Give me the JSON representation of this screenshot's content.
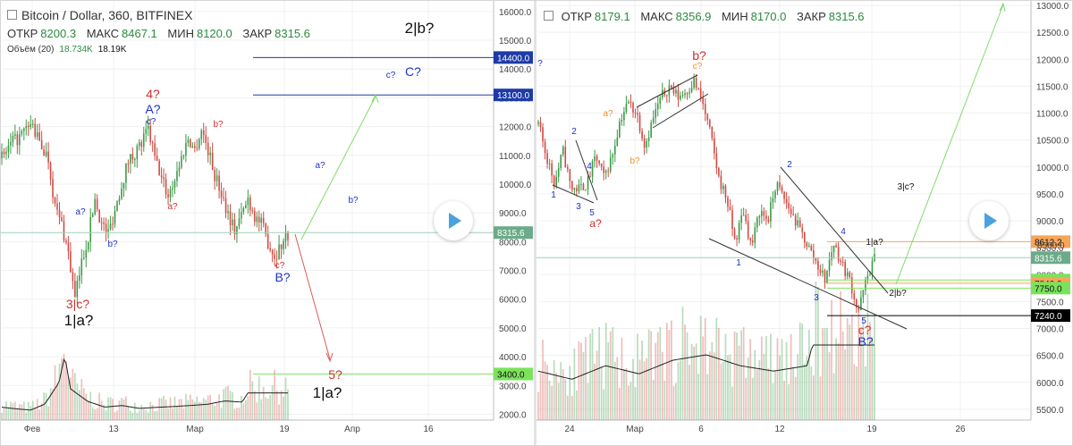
{
  "left_panel": {
    "title": "Bitcoin / Dollar, 360, BITFINEX",
    "ohlc": [
      {
        "label": "ОТКР",
        "value": "8200.3"
      },
      {
        "label": "МАКС",
        "value": "8467.1"
      },
      {
        "label": "МИН",
        "value": "8120.0"
      },
      {
        "label": "ЗАКР",
        "value": "8315.6"
      }
    ],
    "volume_label": "Объём (20)",
    "volume_values": [
      "18.734K",
      "18.19K"
    ]
  },
  "right_panel": {
    "ohlc": [
      {
        "label": "ОТКР",
        "value": "8179.1"
      },
      {
        "label": "МАКС",
        "value": "8356.9"
      },
      {
        "label": "МИН",
        "value": "8170.0"
      },
      {
        "label": "ЗАКР",
        "value": "8315.6"
      }
    ]
  },
  "colors": {
    "up": "#3c9a48",
    "down": "#d24a43",
    "wave_red": "#d32f2f",
    "wave_blue": "#1a33c9",
    "wave_orange": "#f0932b",
    "green_label": "#7be35b",
    "price_tag": "#6bab8a",
    "orange_tag": "#f6a55a",
    "black_tag": "#000000",
    "blue_line": "#1e3aa6"
  },
  "chart_data": [
    {
      "type": "candlestick",
      "title": "Bitcoin / Dollar, 360, BITFINEX",
      "x_ticks": [
        "Фев",
        "13",
        "Мар",
        "19",
        "Апр",
        "16"
      ],
      "y_ticks": [
        2000,
        3000,
        4000,
        5000,
        6000,
        7000,
        8000,
        9000,
        10000,
        11000,
        12000,
        13000,
        14000,
        15000,
        16000
      ],
      "y_tick_labels": [
        "2000.0",
        "3000.0",
        "4000.0",
        "5000.0",
        "6000.0",
        "7000.0",
        "8000.0",
        "9000.0",
        "10000.0",
        "11000.0",
        "12000.0",
        "13000.0",
        "14000.0",
        "15000.0",
        "16000.0"
      ],
      "ylim": [
        1300,
        16400
      ],
      "price_path": [
        [
          0.0,
          10900
        ],
        [
          0.03,
          11400
        ],
        [
          0.06,
          11700
        ],
        [
          0.09,
          12100
        ],
        [
          0.11,
          11500
        ],
        [
          0.14,
          10900
        ],
        [
          0.16,
          9200
        ],
        [
          0.18,
          8600
        ],
        [
          0.2,
          7600
        ],
        [
          0.22,
          6000
        ],
        [
          0.24,
          7300
        ],
        [
          0.26,
          8200
        ],
        [
          0.28,
          9500
        ],
        [
          0.3,
          8600
        ],
        [
          0.32,
          8300
        ],
        [
          0.34,
          9100
        ],
        [
          0.36,
          10000
        ],
        [
          0.38,
          10800
        ],
        [
          0.4,
          11100
        ],
        [
          0.42,
          11400
        ],
        [
          0.44,
          11900
        ],
        [
          0.46,
          10900
        ],
        [
          0.48,
          10200
        ],
        [
          0.5,
          9600
        ],
        [
          0.52,
          10200
        ],
        [
          0.54,
          10900
        ],
        [
          0.56,
          11600
        ],
        [
          0.58,
          11200
        ],
        [
          0.6,
          11900
        ],
        [
          0.62,
          11200
        ],
        [
          0.64,
          10300
        ],
        [
          0.66,
          9700
        ],
        [
          0.68,
          9000
        ],
        [
          0.7,
          8400
        ],
        [
          0.72,
          8900
        ],
        [
          0.74,
          9500
        ],
        [
          0.76,
          8900
        ],
        [
          0.78,
          8600
        ],
        [
          0.8,
          8000
        ],
        [
          0.82,
          7500
        ],
        [
          0.84,
          7900
        ],
        [
          0.86,
          8300
        ]
      ],
      "horizontal_levels": [
        {
          "value": 14400,
          "label": "14400.0",
          "color": "#1e3aa6"
        },
        {
          "value": 13100,
          "label": "13100.0",
          "color": "#1e3aa6"
        },
        {
          "value": 3400,
          "label": "3400.0",
          "color": "#7be35b"
        }
      ],
      "last_price": {
        "value": 8315.6,
        "label": "8315.6"
      },
      "volume": [
        [
          0.0,
          620
        ],
        [
          0.05,
          540
        ],
        [
          0.1,
          480
        ],
        [
          0.15,
          760
        ],
        [
          0.2,
          1800
        ],
        [
          0.22,
          3100
        ],
        [
          0.24,
          1500
        ],
        [
          0.3,
          900
        ],
        [
          0.36,
          620
        ],
        [
          0.42,
          700
        ],
        [
          0.48,
          560
        ],
        [
          0.54,
          610
        ],
        [
          0.6,
          650
        ],
        [
          0.66,
          700
        ],
        [
          0.72,
          760
        ],
        [
          0.78,
          920
        ],
        [
          0.84,
          860
        ],
        [
          0.86,
          1300
        ]
      ],
      "annotations": [
        {
          "text": "4?",
          "color": "red"
        },
        {
          "text": "A?",
          "color": "blue"
        },
        {
          "text": "c?",
          "color": "blue"
        },
        {
          "text": "b?",
          "color": "red"
        },
        {
          "text": "a?",
          "color": "blue"
        },
        {
          "text": "b?",
          "color": "blue"
        },
        {
          "text": "a?",
          "color": "red"
        },
        {
          "text": "3|c?",
          "color": "red"
        },
        {
          "text": "1|a?",
          "color": "black"
        },
        {
          "text": "c?",
          "color": "red"
        },
        {
          "text": "B?",
          "color": "blue"
        },
        {
          "text": "2|b?",
          "color": "black"
        },
        {
          "text": "c?",
          "color": "blue"
        },
        {
          "text": "C?",
          "color": "blue"
        },
        {
          "text": "a?",
          "color": "blue"
        },
        {
          "text": "b?",
          "color": "blue"
        },
        {
          "text": "5?",
          "color": "red"
        },
        {
          "text": "1|a?",
          "color": "black"
        }
      ]
    },
    {
      "type": "candlestick",
      "x_ticks": [
        "24",
        "Мар",
        "6",
        "12",
        "19",
        "26"
      ],
      "y_ticks": [
        5500,
        6000,
        6500,
        7000,
        7500,
        8000,
        8500,
        9000,
        9500,
        10000,
        10500,
        11000,
        11500,
        12000,
        12500,
        13000
      ],
      "y_tick_labels": [
        "5500.0",
        "6000.0",
        "6500.0",
        "7000.0",
        "7500.0",
        "8000.0",
        "8500.0",
        "9000.0",
        "9500.0",
        "10000.0",
        "10500.0",
        "11000.0",
        "11500.0",
        "12000.0",
        "12500.0",
        "13000.0"
      ],
      "ylim": [
        5150,
        13100
      ],
      "price_path": [
        [
          0.0,
          10800
        ],
        [
          0.02,
          10200
        ],
        [
          0.04,
          9700
        ],
        [
          0.06,
          10300
        ],
        [
          0.08,
          9600
        ],
        [
          0.1,
          9600
        ],
        [
          0.12,
          9700
        ],
        [
          0.14,
          10200
        ],
        [
          0.16,
          9800
        ],
        [
          0.18,
          10200
        ],
        [
          0.2,
          10900
        ],
        [
          0.22,
          11200
        ],
        [
          0.24,
          11000
        ],
        [
          0.26,
          10400
        ],
        [
          0.28,
          10900
        ],
        [
          0.3,
          11300
        ],
        [
          0.32,
          11500
        ],
        [
          0.34,
          11300
        ],
        [
          0.36,
          11400
        ],
        [
          0.38,
          11600
        ],
        [
          0.4,
          11200
        ],
        [
          0.42,
          10600
        ],
        [
          0.44,
          9800
        ],
        [
          0.46,
          9400
        ],
        [
          0.48,
          8600
        ],
        [
          0.5,
          9200
        ],
        [
          0.52,
          8500
        ],
        [
          0.54,
          9200
        ],
        [
          0.56,
          9000
        ],
        [
          0.58,
          9700
        ],
        [
          0.6,
          9400
        ],
        [
          0.62,
          9100
        ],
        [
          0.64,
          8800
        ],
        [
          0.66,
          8500
        ],
        [
          0.68,
          8200
        ],
        [
          0.7,
          7900
        ],
        [
          0.72,
          8600
        ],
        [
          0.74,
          8200
        ],
        [
          0.76,
          7900
        ],
        [
          0.78,
          7300
        ],
        [
          0.8,
          7900
        ],
        [
          0.82,
          8300
        ]
      ],
      "horizontal_levels": [
        {
          "value": 8612.2,
          "label": "8612.2",
          "color": "#f6a55a"
        },
        {
          "value": 7900.0,
          "label": "7900.0",
          "color": "#7be35b"
        },
        {
          "value": 7840.0,
          "label": "7840.0",
          "color": "#f6a55a"
        },
        {
          "value": 7750.0,
          "label": "7750.0",
          "color": "#7be35b"
        },
        {
          "value": 7240.0,
          "label": "7240.0",
          "color": "#000000"
        }
      ],
      "last_price": {
        "value": 8315.6,
        "label": "8315.6"
      },
      "partial_tick_label": "8500.0",
      "volume": [
        [
          0.0,
          5480
        ],
        [
          0.1,
          5450
        ],
        [
          0.2,
          5500
        ],
        [
          0.3,
          5470
        ],
        [
          0.4,
          5520
        ],
        [
          0.5,
          5540
        ],
        [
          0.6,
          5500
        ],
        [
          0.7,
          5480
        ],
        [
          0.8,
          5500
        ],
        [
          0.82,
          5600
        ]
      ],
      "annotations": [
        {
          "text": "b?",
          "color": "red"
        },
        {
          "text": "c?",
          "color": "orange"
        },
        {
          "text": "a?",
          "color": "orange"
        },
        {
          "text": "b?",
          "color": "orange"
        },
        {
          "text": "2",
          "color": "blue"
        },
        {
          "text": "4",
          "color": "blue"
        },
        {
          "text": "1",
          "color": "blue"
        },
        {
          "text": "3",
          "color": "blue"
        },
        {
          "text": "5",
          "color": "blue"
        },
        {
          "text": "a?",
          "color": "red"
        },
        {
          "text": "1",
          "color": "blue"
        },
        {
          "text": "2",
          "color": "blue"
        },
        {
          "text": "3",
          "color": "blue"
        },
        {
          "text": "4",
          "color": "blue"
        },
        {
          "text": "5",
          "color": "blue"
        },
        {
          "text": "c?",
          "color": "red"
        },
        {
          "text": "B?",
          "color": "blue"
        },
        {
          "text": "1|a?",
          "color": "black"
        },
        {
          "text": "2|b?",
          "color": "black"
        },
        {
          "text": "3|c?",
          "color": "black"
        },
        {
          "text": "?",
          "color": "blue"
        }
      ]
    }
  ]
}
